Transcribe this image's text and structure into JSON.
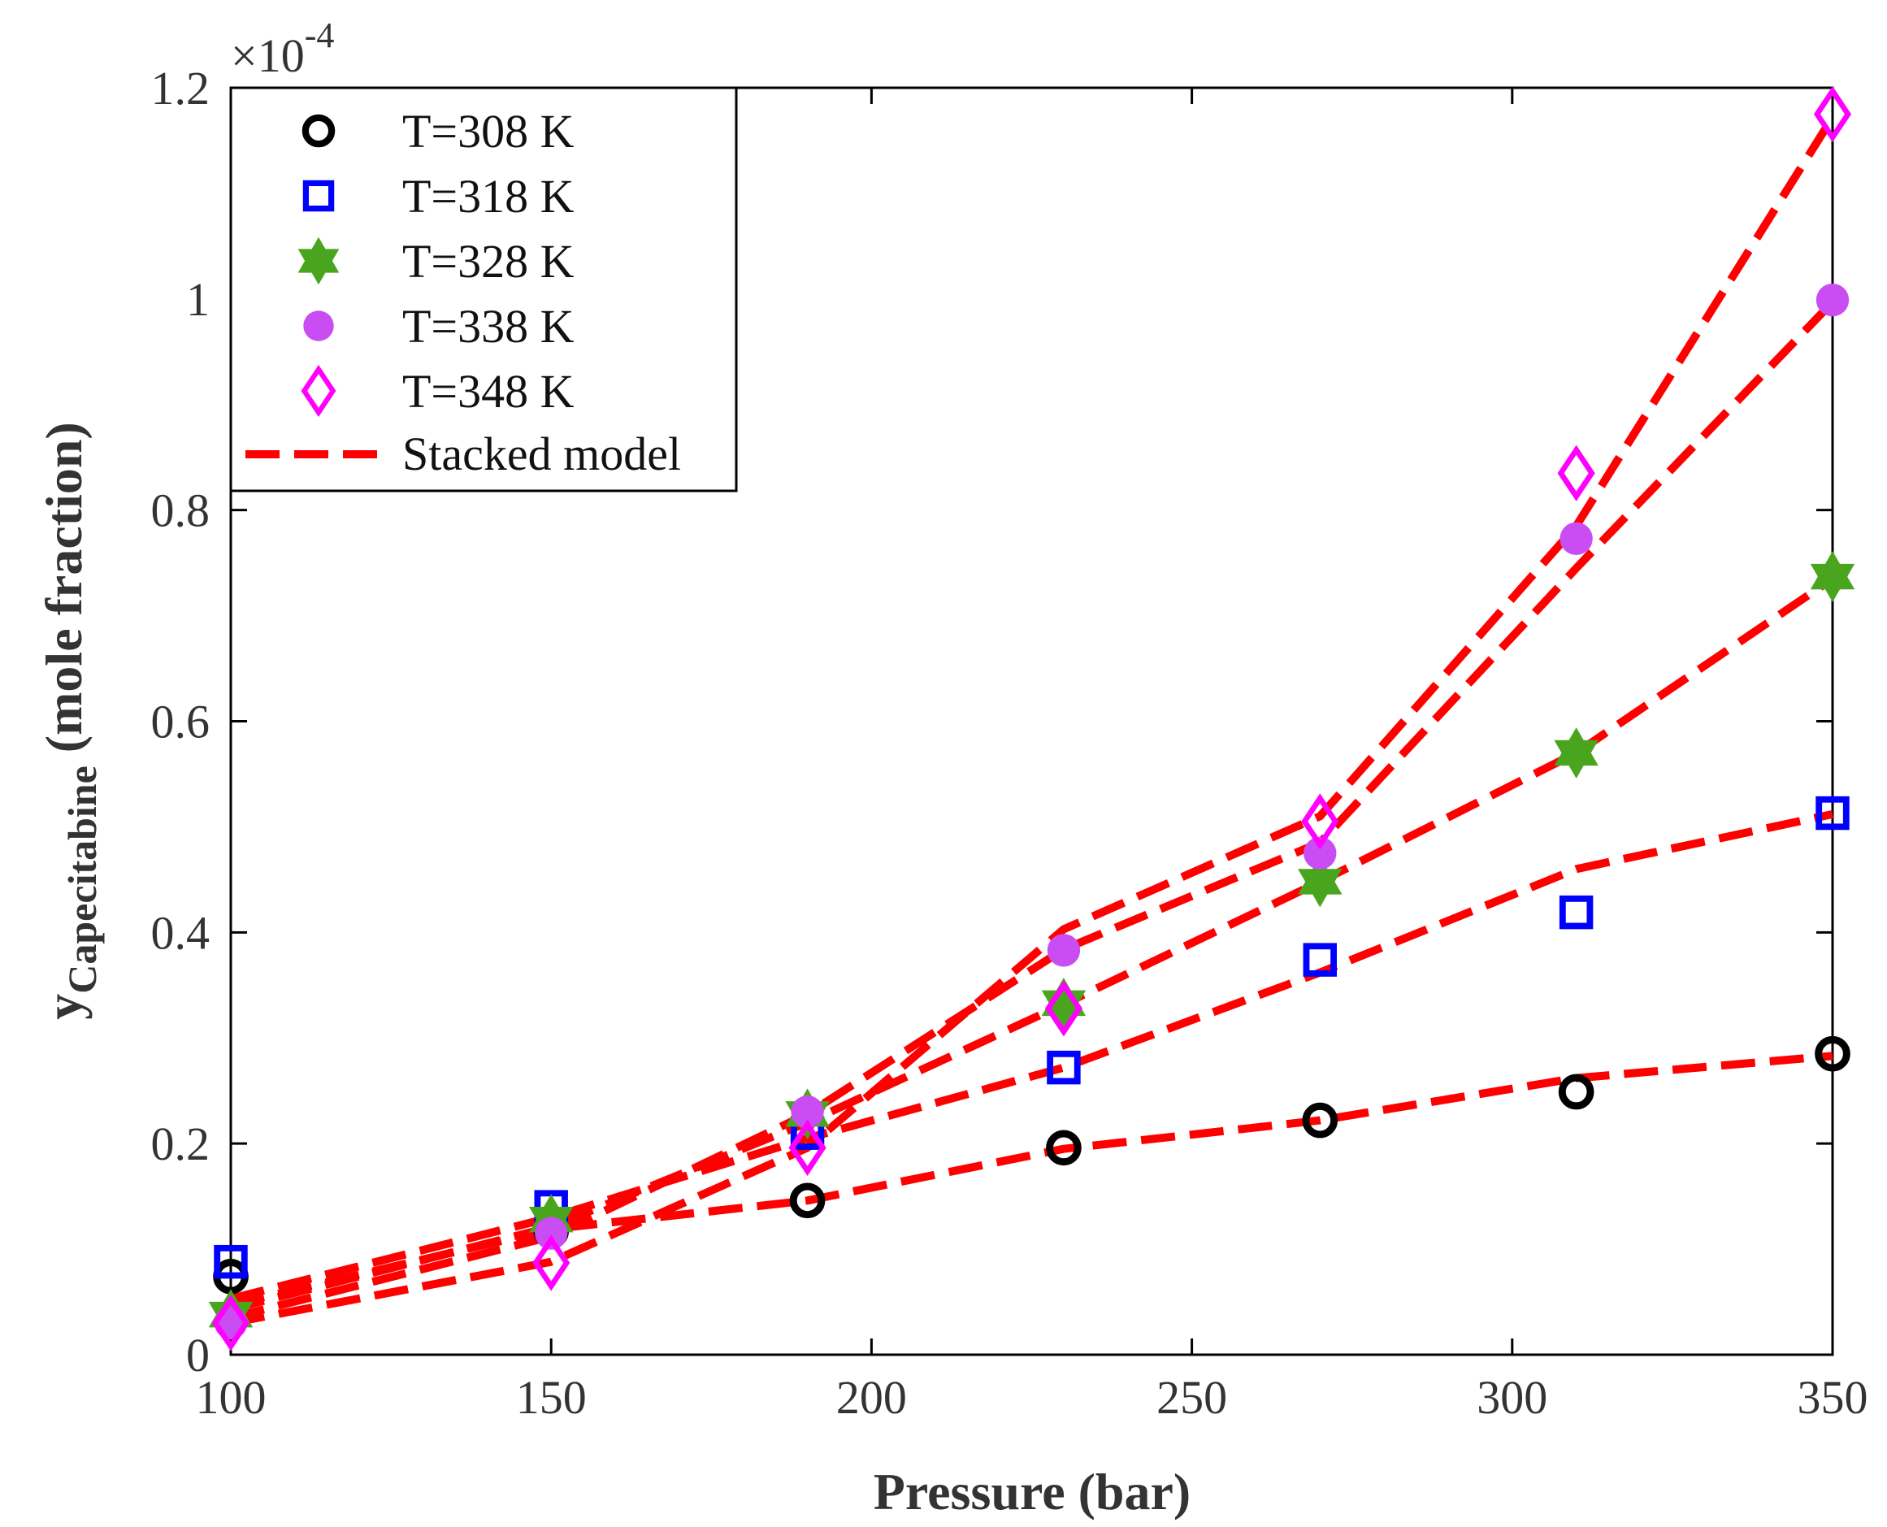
{
  "chart_data": {
    "type": "scatter",
    "title": "",
    "xlabel": "Pressure (bar)",
    "ylabel_main": "y",
    "ylabel_sub": "Capecitabine",
    "ylabel_rest": " (mole fraction)",
    "exponent_prefix": "×10",
    "exponent_power": "-4",
    "xlim": [
      100,
      350
    ],
    "ylim": [
      0,
      1.2
    ],
    "xticks": [
      100,
      150,
      200,
      250,
      300,
      350
    ],
    "yticks": [
      0,
      0.2,
      0.4,
      0.6,
      0.8,
      1,
      1.2
    ],
    "ytick_labels": [
      "0",
      "0.2",
      "0.4",
      "0.6",
      "0.8",
      "1",
      "1.2"
    ],
    "x": [
      100,
      150,
      190,
      230,
      270,
      310,
      350
    ],
    "grid": false,
    "legend_position": "top-left",
    "series": [
      {
        "name": "T=308 K",
        "marker": "circle",
        "color": "#000000",
        "values": [
          0.074,
          0.117,
          0.146,
          0.196,
          0.222,
          0.249,
          0.285
        ],
        "model": [
          0.047,
          0.119,
          0.146,
          0.195,
          0.222,
          0.262,
          0.283
        ]
      },
      {
        "name": "T=318 K",
        "marker": "square",
        "color": "#0000ff",
        "values": [
          0.088,
          0.14,
          0.21,
          0.272,
          0.374,
          0.419,
          0.513
        ],
        "model": [
          0.053,
          0.13,
          0.205,
          0.272,
          0.362,
          0.46,
          0.512
        ]
      },
      {
        "name": "T=328 K",
        "marker": "hexagram",
        "color": "#4aa51e",
        "values": [
          0.038,
          0.128,
          0.228,
          0.333,
          0.448,
          0.57,
          0.737
        ],
        "model": [
          0.043,
          0.121,
          0.22,
          0.332,
          0.448,
          0.57,
          0.735
        ]
      },
      {
        "name": "T=338 K",
        "marker": "filled-circle",
        "color": "#c94df2",
        "values": [
          0.03,
          0.115,
          0.23,
          0.383,
          0.475,
          0.773,
          0.999
        ],
        "model": [
          0.035,
          0.112,
          0.228,
          0.384,
          0.485,
          0.745,
          0.997
        ]
      },
      {
        "name": "T=348 K",
        "marker": "diamond",
        "color": "#ff00ff",
        "values": [
          0.03,
          0.087,
          0.196,
          0.328,
          0.505,
          0.835,
          1.175
        ],
        "model": [
          0.03,
          0.088,
          0.196,
          0.403,
          0.51,
          0.785,
          1.172
        ]
      }
    ],
    "model_legend": "Stacked model",
    "model_color": "#ff0000"
  }
}
